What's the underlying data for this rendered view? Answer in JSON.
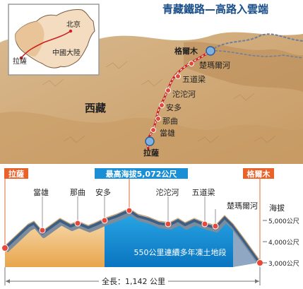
{
  "title": "青藏鐵路—高路入雲端",
  "inset": {
    "beijing": "北京",
    "lhasa": "拉薩",
    "china": "中國大陸"
  },
  "map": {
    "region": "西藏",
    "stations": [
      {
        "name": "格爾木",
        "kind": "terminus"
      },
      {
        "name": "楚瑪爾河",
        "kind": "station"
      },
      {
        "name": "五道梁",
        "kind": "station"
      },
      {
        "name": "沱沱河",
        "kind": "station"
      },
      {
        "name": "安多",
        "kind": "station"
      },
      {
        "name": "那曲",
        "kind": "station"
      },
      {
        "name": "當雄",
        "kind": "station"
      },
      {
        "name": "拉薩",
        "kind": "terminus"
      }
    ],
    "colors": {
      "route": "#cc2222",
      "map": "#d7b98e",
      "sky": "#ffffff",
      "rail": "#6a7f9a"
    }
  },
  "profile": {
    "left_label": "拉薩",
    "right_label": "格爾木",
    "top_label": "最高海拔5,072公尺",
    "stations": [
      "當雄",
      "那曲",
      "安多",
      "沱沱河",
      "五道梁",
      "楚瑪爾河"
    ],
    "permafrost_label": "550公里連續多年凍土地段",
    "axis_title": "海拔",
    "ticks": [
      "5,000公尺",
      "4,000公尺",
      "3,000公尺"
    ],
    "length_label": "全長：1,142 公里",
    "colors": {
      "permafrost": "#1fa3e0",
      "ground": "#f0c89a",
      "header": "#e8622a",
      "highlight": "#1b8fd6"
    }
  }
}
